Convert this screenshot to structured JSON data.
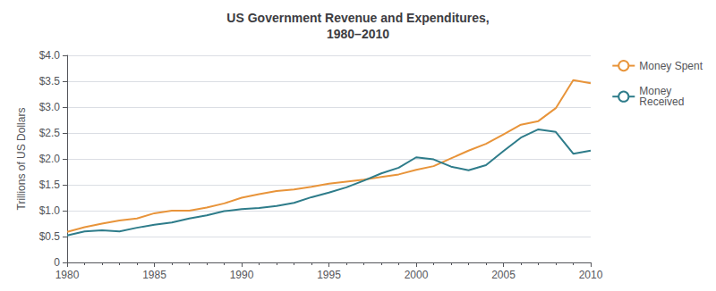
{
  "chart_data": {
    "type": "line",
    "title": "US Government Revenue and Expenditures,\n1980–2010",
    "y_label": "Trillions of US Dollars",
    "x": [
      1980,
      1981,
      1982,
      1983,
      1984,
      1985,
      1986,
      1987,
      1988,
      1989,
      1990,
      1991,
      1992,
      1993,
      1994,
      1995,
      1996,
      1997,
      1998,
      1999,
      2000,
      2001,
      2002,
      2003,
      2004,
      2005,
      2006,
      2007,
      2008,
      2009,
      2010
    ],
    "series": [
      {
        "name": "Money Spent",
        "color": "#E8943A",
        "values": [
          0.59,
          0.68,
          0.75,
          0.81,
          0.85,
          0.95,
          1.0,
          1.0,
          1.06,
          1.14,
          1.25,
          1.32,
          1.38,
          1.41,
          1.46,
          1.52,
          1.56,
          1.6,
          1.65,
          1.7,
          1.79,
          1.86,
          2.01,
          2.16,
          2.29,
          2.47,
          2.66,
          2.73,
          2.98,
          3.52,
          3.46
        ]
      },
      {
        "name": "Money\nReceived",
        "color": "#2E7C8A",
        "values": [
          0.52,
          0.6,
          0.62,
          0.6,
          0.67,
          0.73,
          0.77,
          0.85,
          0.91,
          0.99,
          1.03,
          1.05,
          1.09,
          1.15,
          1.26,
          1.35,
          1.45,
          1.58,
          1.72,
          1.83,
          2.03,
          1.99,
          1.85,
          1.78,
          1.88,
          2.15,
          2.41,
          2.57,
          2.52,
          2.1,
          2.16
        ]
      }
    ],
    "xlim": [
      1980,
      2010
    ],
    "xticks": [
      1980,
      1985,
      1990,
      1995,
      2000,
      2005,
      2010
    ],
    "ylim": [
      0,
      4.0
    ],
    "yticks": [
      0,
      {
        "value": 0.5,
        "label": "$0.5"
      },
      {
        "value": 1.0,
        "label": "$1.0"
      },
      {
        "value": 1.5,
        "label": "$1.5"
      },
      {
        "value": 2.0,
        "label": "$2.0"
      },
      {
        "value": 2.5,
        "label": "$2.5"
      },
      {
        "value": 3.0,
        "label": "$3.0"
      },
      {
        "value": 3.5,
        "label": "$3.5"
      },
      {
        "value": 4.0,
        "label": "$4.0"
      }
    ],
    "grid": true,
    "legend": "right"
  }
}
